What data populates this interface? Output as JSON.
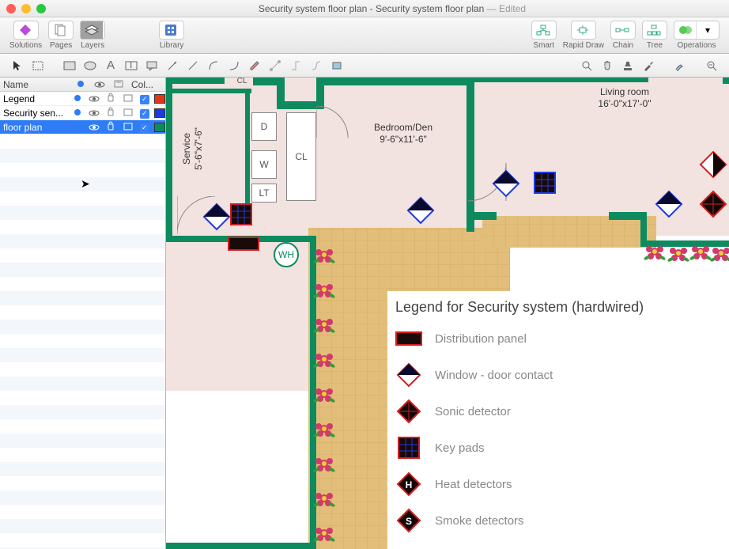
{
  "window": {
    "title": "Security system floor plan - Security system floor plan",
    "edited": "— Edited"
  },
  "toolbar": {
    "groups": [
      {
        "label": "Solutions",
        "icons": [
          "solutions"
        ]
      },
      {
        "label": "Pages",
        "icons": [
          "pages"
        ]
      },
      {
        "label": "Layers",
        "icons": [
          "layers"
        ],
        "active": true
      },
      {
        "label": "Library",
        "icons": [
          "library"
        ]
      },
      {
        "label": "Smart",
        "icons": [
          "smart"
        ]
      },
      {
        "label": "Rapid Draw",
        "icons": [
          "rapid"
        ]
      },
      {
        "label": "Chain",
        "icons": [
          "chain"
        ]
      },
      {
        "label": "Tree",
        "icons": [
          "tree"
        ]
      },
      {
        "label": "Operations",
        "icons": [
          "ops"
        ]
      }
    ]
  },
  "layers": {
    "header": {
      "name": "Name",
      "col": "Col..."
    },
    "rows": [
      {
        "name": "Legend",
        "color": "#e53516"
      },
      {
        "name": "Security sen...",
        "color": "#1b3be0"
      },
      {
        "name": "floor plan",
        "color": "#0d8b5f",
        "selected": true
      }
    ]
  },
  "rooms": {
    "bedroom": {
      "name": "Bedroom/Den",
      "dim": "9'-6\"x11'-6\""
    },
    "living": {
      "name": "Living room",
      "dim": "16'-0\"x17'-0\""
    },
    "service": {
      "name": "Service",
      "dim": "5'-6\"x7'-6\""
    },
    "closets": {
      "d": "D",
      "w": "W",
      "lt": "LT",
      "cl": "CL"
    },
    "wh": "WH"
  },
  "legend": {
    "title": "Legend for Security system (hardwired)",
    "items": [
      {
        "label": "Distribution panel"
      },
      {
        "label": "Window - door contact"
      },
      {
        "label": "Sonic detector"
      },
      {
        "label": "Key pads"
      },
      {
        "label": "Heat detectors"
      },
      {
        "label": "Smoke detectors"
      }
    ]
  },
  "colors": {
    "wall": "#0d8b5f",
    "room_fill": "#f2e2e0",
    "panel": "#1a0a0a",
    "panel_border": "#d41c1c",
    "contact_fill": "#0a0a30",
    "contact_stroke": "#c91b1b",
    "sonic_fill": "#120808",
    "sonic_stroke": "#d41c1c",
    "keypad_fill": "#1a0808",
    "keypad_stroke": "#d41c1c",
    "keypad_grid": "#1b3be0",
    "detector_fill": "#120808",
    "detector_stroke": "#d41c1c",
    "flower_petal": "#d13a6a",
    "flower_center": "#f0d030",
    "flower_leaf": "#3a9a3a"
  }
}
